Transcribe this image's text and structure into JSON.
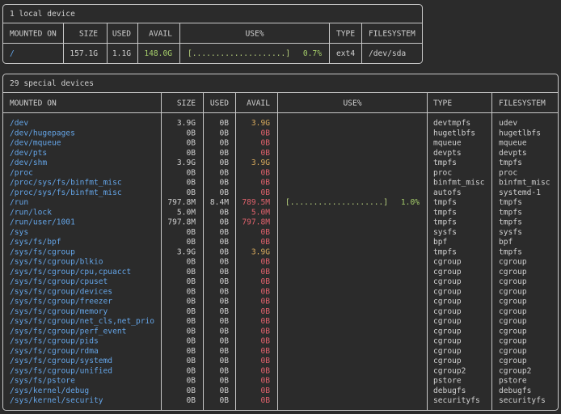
{
  "headers": [
    "MOUNTED ON",
    "SIZE",
    "USED",
    "AVAIL",
    "USE%",
    "TYPE",
    "FILESYSTEM"
  ],
  "local": {
    "title": "1 local device",
    "rows": [
      {
        "mount": "/",
        "size": "157.1G",
        "used": "1.1G",
        "avail": "148.0G",
        "avail_color": "#a6cf6a",
        "use": "[....................]",
        "use_pct": "0.7%",
        "type": "ext4",
        "filesystem": "/dev/sda"
      }
    ]
  },
  "special": {
    "title": "29 special devices",
    "rows": [
      {
        "mount": "/dev",
        "size": "3.9G",
        "used": "0B",
        "avail": "3.9G",
        "avail_color": "#d6a85c",
        "type": "devtmpfs",
        "filesystem": "udev"
      },
      {
        "mount": "/dev/hugepages",
        "size": "0B",
        "used": "0B",
        "avail": "0B",
        "avail_color": "#e0626c",
        "type": "hugetlbfs",
        "filesystem": "hugetlbfs"
      },
      {
        "mount": "/dev/mqueue",
        "size": "0B",
        "used": "0B",
        "avail": "0B",
        "avail_color": "#e0626c",
        "type": "mqueue",
        "filesystem": "mqueue"
      },
      {
        "mount": "/dev/pts",
        "size": "0B",
        "used": "0B",
        "avail": "0B",
        "avail_color": "#e0626c",
        "type": "devpts",
        "filesystem": "devpts"
      },
      {
        "mount": "/dev/shm",
        "size": "3.9G",
        "used": "0B",
        "avail": "3.9G",
        "avail_color": "#d6a85c",
        "type": "tmpfs",
        "filesystem": "tmpfs"
      },
      {
        "mount": "/proc",
        "size": "0B",
        "used": "0B",
        "avail": "0B",
        "avail_color": "#e0626c",
        "type": "proc",
        "filesystem": "proc"
      },
      {
        "mount": "/proc/sys/fs/binfmt_misc",
        "size": "0B",
        "used": "0B",
        "avail": "0B",
        "avail_color": "#e0626c",
        "type": "binfmt_misc",
        "filesystem": "binfmt_misc"
      },
      {
        "mount": "/proc/sys/fs/binfmt_misc",
        "size": "0B",
        "used": "0B",
        "avail": "0B",
        "avail_color": "#e0626c",
        "type": "autofs",
        "filesystem": "systemd-1"
      },
      {
        "mount": "/run",
        "size": "797.8M",
        "used": "8.4M",
        "avail": "789.5M",
        "avail_color": "#e0626c",
        "use": "[....................]",
        "use_pct": "1.0%",
        "type": "tmpfs",
        "filesystem": "tmpfs"
      },
      {
        "mount": "/run/lock",
        "size": "5.0M",
        "used": "0B",
        "avail": "5.0M",
        "avail_color": "#e0626c",
        "type": "tmpfs",
        "filesystem": "tmpfs"
      },
      {
        "mount": "/run/user/1001",
        "size": "797.8M",
        "used": "0B",
        "avail": "797.8M",
        "avail_color": "#e0626c",
        "type": "tmpfs",
        "filesystem": "tmpfs"
      },
      {
        "mount": "/sys",
        "size": "0B",
        "used": "0B",
        "avail": "0B",
        "avail_color": "#e0626c",
        "type": "sysfs",
        "filesystem": "sysfs"
      },
      {
        "mount": "/sys/fs/bpf",
        "size": "0B",
        "used": "0B",
        "avail": "0B",
        "avail_color": "#e0626c",
        "type": "bpf",
        "filesystem": "bpf"
      },
      {
        "mount": "/sys/fs/cgroup",
        "size": "3.9G",
        "used": "0B",
        "avail": "3.9G",
        "avail_color": "#d6a85c",
        "type": "tmpfs",
        "filesystem": "tmpfs"
      },
      {
        "mount": "/sys/fs/cgroup/blkio",
        "size": "0B",
        "used": "0B",
        "avail": "0B",
        "avail_color": "#e0626c",
        "type": "cgroup",
        "filesystem": "cgroup"
      },
      {
        "mount": "/sys/fs/cgroup/cpu,cpuacct",
        "size": "0B",
        "used": "0B",
        "avail": "0B",
        "avail_color": "#e0626c",
        "type": "cgroup",
        "filesystem": "cgroup"
      },
      {
        "mount": "/sys/fs/cgroup/cpuset",
        "size": "0B",
        "used": "0B",
        "avail": "0B",
        "avail_color": "#e0626c",
        "type": "cgroup",
        "filesystem": "cgroup"
      },
      {
        "mount": "/sys/fs/cgroup/devices",
        "size": "0B",
        "used": "0B",
        "avail": "0B",
        "avail_color": "#e0626c",
        "type": "cgroup",
        "filesystem": "cgroup"
      },
      {
        "mount": "/sys/fs/cgroup/freezer",
        "size": "0B",
        "used": "0B",
        "avail": "0B",
        "avail_color": "#e0626c",
        "type": "cgroup",
        "filesystem": "cgroup"
      },
      {
        "mount": "/sys/fs/cgroup/memory",
        "size": "0B",
        "used": "0B",
        "avail": "0B",
        "avail_color": "#e0626c",
        "type": "cgroup",
        "filesystem": "cgroup"
      },
      {
        "mount": "/sys/fs/cgroup/net_cls,net_prio",
        "size": "0B",
        "used": "0B",
        "avail": "0B",
        "avail_color": "#e0626c",
        "type": "cgroup",
        "filesystem": "cgroup"
      },
      {
        "mount": "/sys/fs/cgroup/perf_event",
        "size": "0B",
        "used": "0B",
        "avail": "0B",
        "avail_color": "#e0626c",
        "type": "cgroup",
        "filesystem": "cgroup"
      },
      {
        "mount": "/sys/fs/cgroup/pids",
        "size": "0B",
        "used": "0B",
        "avail": "0B",
        "avail_color": "#e0626c",
        "type": "cgroup",
        "filesystem": "cgroup"
      },
      {
        "mount": "/sys/fs/cgroup/rdma",
        "size": "0B",
        "used": "0B",
        "avail": "0B",
        "avail_color": "#e0626c",
        "type": "cgroup",
        "filesystem": "cgroup"
      },
      {
        "mount": "/sys/fs/cgroup/systemd",
        "size": "0B",
        "used": "0B",
        "avail": "0B",
        "avail_color": "#e0626c",
        "type": "cgroup",
        "filesystem": "cgroup"
      },
      {
        "mount": "/sys/fs/cgroup/unified",
        "size": "0B",
        "used": "0B",
        "avail": "0B",
        "avail_color": "#e0626c",
        "type": "cgroup2",
        "filesystem": "cgroup2"
      },
      {
        "mount": "/sys/fs/pstore",
        "size": "0B",
        "used": "0B",
        "avail": "0B",
        "avail_color": "#e0626c",
        "type": "pstore",
        "filesystem": "pstore"
      },
      {
        "mount": "/sys/kernel/debug",
        "size": "0B",
        "used": "0B",
        "avail": "0B",
        "avail_color": "#e0626c",
        "type": "debugfs",
        "filesystem": "debugfs"
      },
      {
        "mount": "/sys/kernel/security",
        "size": "0B",
        "used": "0B",
        "avail": "0B",
        "avail_color": "#e0626c",
        "type": "securityfs",
        "filesystem": "securityfs"
      }
    ]
  }
}
